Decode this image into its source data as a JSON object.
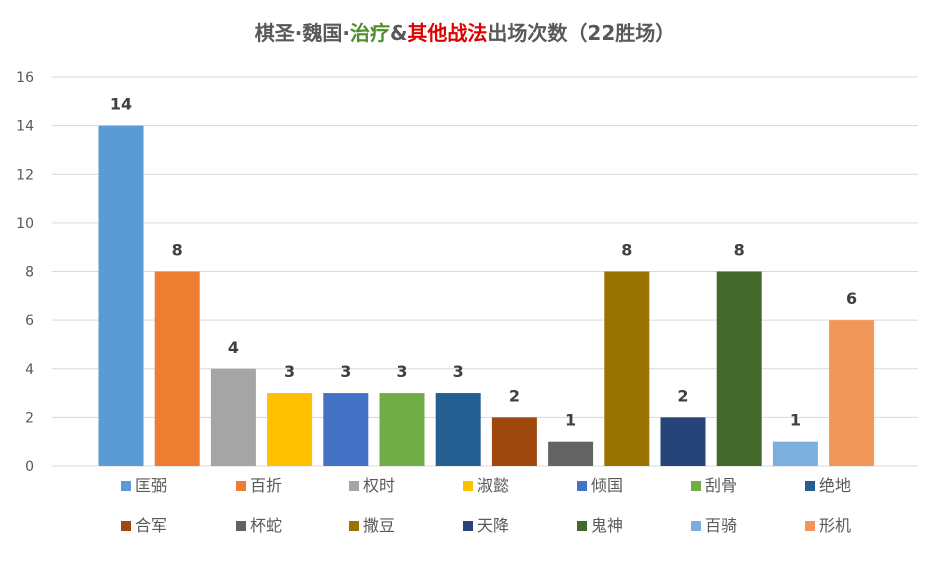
{
  "chart_data": {
    "type": "bar",
    "title_parts": [
      {
        "text": "棋圣·魏国·",
        "color": "#595959"
      },
      {
        "text": "治疗",
        "color": "#4E8F2A"
      },
      {
        "text": "&",
        "color": "#595959"
      },
      {
        "text": "其他战法",
        "color": "#E00000"
      },
      {
        "text": "出场次数（22胜场）",
        "color": "#595959"
      }
    ],
    "title": "棋圣·魏国·治疗&其他战法出场次数（22胜场）",
    "xlabel": "",
    "ylabel": "",
    "ylim": [
      0,
      16
    ],
    "yticks": [
      0,
      2,
      4,
      6,
      8,
      10,
      12,
      14,
      16
    ],
    "grid": true,
    "legend_position": "bottom",
    "series": [
      {
        "name": "匡弼",
        "value": 14,
        "color": "#5B9BD5"
      },
      {
        "name": "百折",
        "value": 8,
        "color": "#ED7D31"
      },
      {
        "name": "权时",
        "value": 4,
        "color": "#A5A5A5"
      },
      {
        "name": "淑懿",
        "value": 3,
        "color": "#FFC000"
      },
      {
        "name": "倾国",
        "value": 3,
        "color": "#4472C4"
      },
      {
        "name": "刮骨",
        "value": 3,
        "color": "#70AD47"
      },
      {
        "name": "绝地",
        "value": 3,
        "color": "#255E91"
      },
      {
        "name": "合军",
        "value": 2,
        "color": "#9E480E"
      },
      {
        "name": "杯蛇",
        "value": 1,
        "color": "#636363"
      },
      {
        "name": "撒豆",
        "value": 8,
        "color": "#997300"
      },
      {
        "name": "天降",
        "value": 2,
        "color": "#264478"
      },
      {
        "name": "鬼神",
        "value": 8,
        "color": "#43682B"
      },
      {
        "name": "百骑",
        "value": 1,
        "color": "#7CAFDD"
      },
      {
        "name": "形机",
        "value": 6,
        "color": "#F1975A"
      }
    ]
  }
}
